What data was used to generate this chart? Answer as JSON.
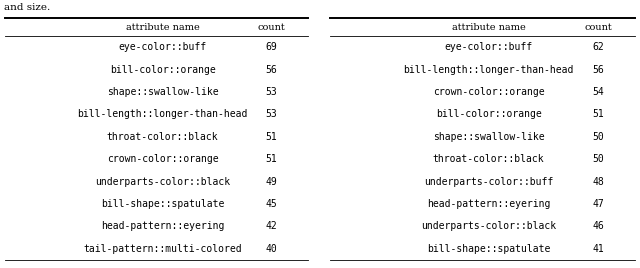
{
  "table1": {
    "header": [
      "attribute name",
      "count"
    ],
    "rows": [
      [
        "eye-color::buff",
        "69"
      ],
      [
        "bill-color::orange",
        "56"
      ],
      [
        "shape::swallow-like",
        "53"
      ],
      [
        "bill-length::longer-than-head",
        "53"
      ],
      [
        "throat-color::black",
        "51"
      ],
      [
        "crown-color::orange",
        "51"
      ],
      [
        "underparts-color::black",
        "49"
      ],
      [
        "bill-shape::spatulate",
        "45"
      ],
      [
        "head-pattern::eyering",
        "42"
      ],
      [
        "tail-pattern::multi-colored",
        "40"
      ]
    ]
  },
  "table2": {
    "header": [
      "attribute name",
      "count"
    ],
    "rows": [
      [
        "eye-color::buff",
        "62"
      ],
      [
        "bill-length::longer-than-head",
        "56"
      ],
      [
        "crown-color::orange",
        "54"
      ],
      [
        "bill-color::orange",
        "51"
      ],
      [
        "shape::swallow-like",
        "50"
      ],
      [
        "throat-color::black",
        "50"
      ],
      [
        "underparts-color::buff",
        "48"
      ],
      [
        "head-pattern::eyering",
        "47"
      ],
      [
        "underparts-color::black",
        "46"
      ],
      [
        "bill-shape::spatulate",
        "41"
      ]
    ]
  },
  "top_text": "and size.",
  "background_color": "#ffffff",
  "data_font_size": 7.0,
  "header_font_size": 7.0,
  "line_color": "#000000",
  "thick_lw": 1.4,
  "thin_lw": 0.6
}
